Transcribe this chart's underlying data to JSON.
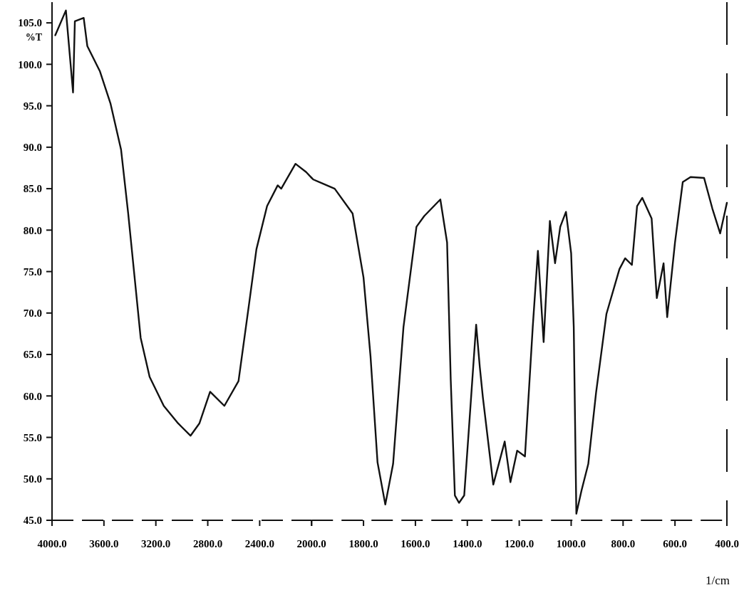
{
  "chart_data": [
    {
      "type": "line",
      "ylabel": "%T",
      "xlim": [
        4000,
        2000
      ],
      "xticks": [
        {
          "value": 4000,
          "label": "4000.0"
        },
        {
          "value": 3600,
          "label": "3600.0"
        },
        {
          "value": 3200,
          "label": "3200.0"
        },
        {
          "value": 2800,
          "label": "2800.0"
        },
        {
          "value": 2400,
          "label": "2400.0"
        },
        {
          "value": 2000,
          "label": "2000.0"
        }
      ],
      "ylim": [
        45,
        107.5
      ],
      "yticks": [
        {
          "value": 45,
          "label": "45.0"
        },
        {
          "value": 50,
          "label": "50.0"
        },
        {
          "value": 55,
          "label": "55.0"
        },
        {
          "value": 60,
          "label": "60.0"
        },
        {
          "value": 65,
          "label": "65.0"
        },
        {
          "value": 70,
          "label": "70.0"
        },
        {
          "value": 75,
          "label": "75.0"
        },
        {
          "value": 80,
          "label": "80.0"
        },
        {
          "value": 85,
          "label": "85.0"
        },
        {
          "value": 90,
          "label": "90.0"
        },
        {
          "value": 95,
          "label": "95.0"
        },
        {
          "value": 100,
          "label": "100.0"
        },
        {
          "value": 105,
          "label": "105.0"
        }
      ],
      "grid": false,
      "marker": "none",
      "line_style": "solid",
      "series": [
        {
          "color": "#111111",
          "x": [
            3975,
            3893,
            3838,
            3824,
            3756,
            3728,
            3632,
            3550,
            3468,
            3413,
            3358,
            3317,
            3248,
            3139,
            3029,
            2933,
            2864,
            2782,
            2672,
            2563,
            2480,
            2425,
            2343,
            2261,
            2234,
            2124,
            2042,
            2000
          ],
          "values": [
            103.5,
            106.5,
            96.6,
            105.2,
            105.6,
            102.2,
            99.2,
            95.3,
            89.7,
            82.0,
            73.4,
            67.0,
            62.3,
            58.8,
            56.7,
            55.2,
            56.7,
            60.5,
            58.8,
            61.8,
            71.3,
            77.7,
            82.9,
            85.4,
            85.0,
            88.0,
            87.0,
            86.3
          ]
        }
      ]
    },
    {
      "type": "line",
      "xlabel": "1/cm",
      "tick_labels": "x",
      "xlim": [
        2000,
        400
      ],
      "xticks": [
        {
          "value": 2000,
          "label": null
        },
        {
          "value": 1800,
          "label": "1800.0"
        },
        {
          "value": 1600,
          "label": "1600.0"
        },
        {
          "value": 1400,
          "label": "1400.0"
        },
        {
          "value": 1200,
          "label": "1200.0"
        },
        {
          "value": 1000,
          "label": "1000.0"
        },
        {
          "value": 800,
          "label": "800.0"
        },
        {
          "value": 600,
          "label": "600.0"
        },
        {
          "value": 400,
          "label": "400.0"
        }
      ],
      "ylim": [
        45,
        107.5
      ],
      "grid": false,
      "marker": "none",
      "line_style": "solid",
      "series": [
        {
          "color": "#111111",
          "x": [
            2000,
            1993,
            1911,
            1842,
            1800,
            1773,
            1746,
            1716,
            1686,
            1646,
            1596,
            1566,
            1504,
            1478,
            1464,
            1448,
            1432,
            1412,
            1392,
            1366,
            1352,
            1340,
            1300,
            1256,
            1234,
            1208,
            1178,
            1148,
            1128,
            1106,
            1082,
            1062,
            1042,
            1020,
            1000,
            990,
            980,
            960,
            934,
            904,
            864,
            814,
            792,
            766,
            746,
            726,
            690,
            670,
            644,
            630,
            600,
            570,
            540,
            488,
            456,
            426,
            400
          ],
          "values": [
            86.3,
            86.1,
            85.0,
            82.0,
            74.3,
            64.8,
            52.0,
            46.9,
            51.8,
            68.3,
            80.4,
            81.7,
            83.7,
            78.5,
            62.0,
            48.0,
            47.1,
            48.0,
            56.9,
            68.6,
            63.5,
            59.8,
            49.3,
            54.5,
            49.6,
            53.4,
            52.7,
            68.3,
            77.5,
            66.5,
            81.1,
            76.0,
            80.4,
            82.2,
            77.2,
            68.3,
            45.8,
            48.6,
            51.8,
            60.4,
            69.9,
            75.3,
            76.6,
            75.8,
            82.9,
            83.9,
            81.4,
            71.8,
            76.0,
            69.5,
            78.5,
            85.8,
            86.4,
            86.3,
            82.6,
            79.6,
            83.3
          ]
        }
      ]
    }
  ]
}
